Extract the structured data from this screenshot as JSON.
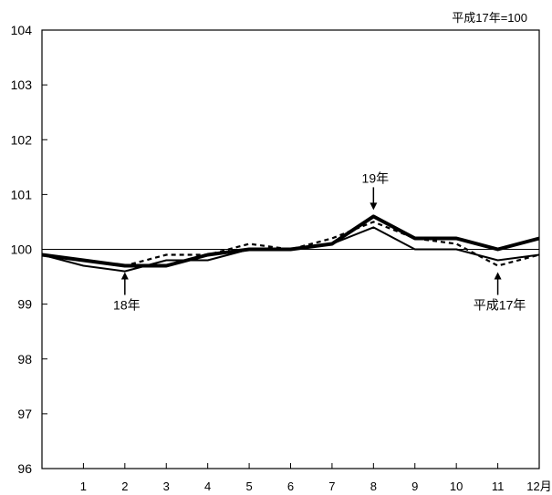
{
  "chart_data": {
    "type": "line",
    "note": "平成17年=100",
    "x_tick_labels": [
      "1",
      "2",
      "3",
      "4",
      "5",
      "6",
      "7",
      "8",
      "9",
      "10",
      "11",
      "12月"
    ],
    "x": [
      0,
      1,
      2,
      3,
      4,
      5,
      6,
      7,
      8,
      9,
      10,
      11,
      12
    ],
    "ylim": [
      96,
      104
    ],
    "y_ticks": [
      96,
      97,
      98,
      99,
      100,
      101,
      102,
      103,
      104
    ],
    "reference_line": 100,
    "series": [
      {
        "style": "thin-solid",
        "values": [
          99.9,
          99.7,
          99.6,
          99.8,
          99.8,
          100.0,
          100.0,
          100.1,
          100.4,
          100.0,
          100.0,
          99.8,
          99.9
        ]
      },
      {
        "style": "dashed",
        "values": [
          99.9,
          99.8,
          99.7,
          99.9,
          99.9,
          100.1,
          100.0,
          100.2,
          100.5,
          100.2,
          100.1,
          99.7,
          99.9
        ]
      },
      {
        "style": "thick-solid",
        "values": [
          99.9,
          99.8,
          99.7,
          99.7,
          99.9,
          100.0,
          100.0,
          100.1,
          100.6,
          100.2,
          100.2,
          100.0,
          100.2
        ]
      }
    ],
    "annotations": [
      {
        "text": "19年",
        "x": 8,
        "y": 100.6,
        "direction": "down"
      },
      {
        "text": "18年",
        "x": 2,
        "y": 99.7,
        "direction": "up"
      },
      {
        "text": "平成17年",
        "x": 11,
        "y": 99.7,
        "direction": "up"
      }
    ]
  }
}
